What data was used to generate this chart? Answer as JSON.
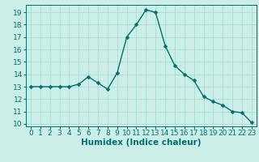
{
  "x": [
    0,
    1,
    2,
    3,
    4,
    5,
    6,
    7,
    8,
    9,
    10,
    11,
    12,
    13,
    14,
    15,
    16,
    17,
    18,
    19,
    20,
    21,
    22,
    23
  ],
  "y": [
    13,
    13,
    13,
    13,
    13,
    13.2,
    13.8,
    13.3,
    12.8,
    14.1,
    17.0,
    18.0,
    19.2,
    19.0,
    16.3,
    14.7,
    14.0,
    13.5,
    12.2,
    11.8,
    11.5,
    11.0,
    10.9,
    10.1
  ],
  "line_color": "#007070",
  "marker_color": "#007070",
  "bg_color": "#cceee8",
  "grid_color": "#aaddcc",
  "xlabel": "Humidex (Indice chaleur)",
  "xlim": [
    -0.5,
    23.5
  ],
  "ylim": [
    9.8,
    19.6
  ],
  "yticks": [
    10,
    11,
    12,
    13,
    14,
    15,
    16,
    17,
    18,
    19
  ],
  "xticks": [
    0,
    1,
    2,
    3,
    4,
    5,
    6,
    7,
    8,
    9,
    10,
    11,
    12,
    13,
    14,
    15,
    16,
    17,
    18,
    19,
    20,
    21,
    22,
    23
  ],
  "tick_label_fontsize": 6.5,
  "xlabel_fontsize": 7.5,
  "marker_size": 2.5,
  "line_width": 1.0
}
